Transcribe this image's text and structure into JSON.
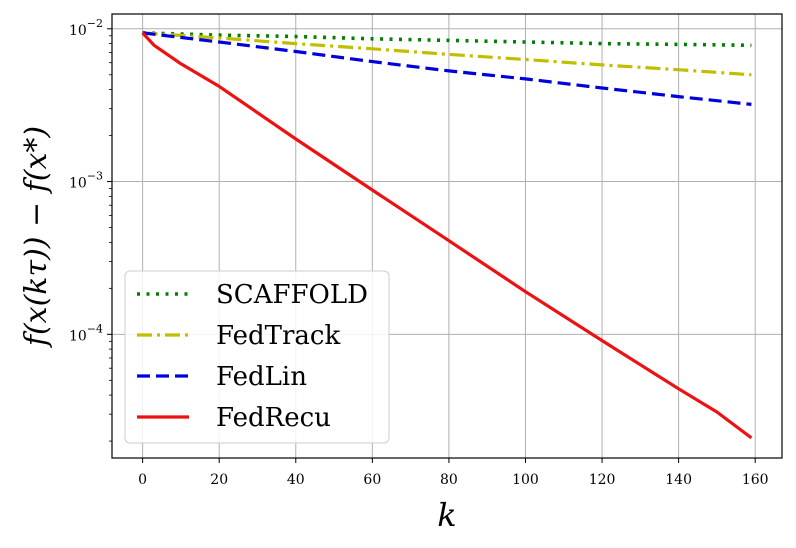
{
  "chart_data": {
    "type": "line",
    "title": "",
    "xlabel": "k",
    "ylabel": "f(x(kτ)) − f(x*)",
    "xscale": "linear",
    "yscale": "log",
    "xlim": [
      -8,
      167
    ],
    "ylim": [
      1.55e-05,
      0.0125
    ],
    "xticks": [
      0,
      20,
      40,
      60,
      80,
      100,
      120,
      140,
      160
    ],
    "yticks": [
      {
        "value": 0.0001,
        "base": "10",
        "exp": "−4"
      },
      {
        "value": 0.001,
        "base": "10",
        "exp": "−3"
      },
      {
        "value": 0.01,
        "base": "10",
        "exp": "−2"
      }
    ],
    "grid": true,
    "legend": {
      "position": "lower-left"
    },
    "series": [
      {
        "name": "SCAFFOLD",
        "color": "#008000",
        "style": "dotted",
        "x": [
          0,
          20,
          40,
          60,
          80,
          100,
          120,
          140,
          159
        ],
        "y": [
          0.0094,
          0.0091,
          0.0089,
          0.0086,
          0.0084,
          0.0082,
          0.008,
          0.0079,
          0.0078
        ]
      },
      {
        "name": "FedTrack",
        "color": "#bfbf00",
        "style": "dashdot",
        "x": [
          0,
          20,
          40,
          60,
          80,
          100,
          120,
          140,
          159
        ],
        "y": [
          0.0094,
          0.0087,
          0.008,
          0.0074,
          0.0068,
          0.0063,
          0.0058,
          0.0054,
          0.005
        ]
      },
      {
        "name": "FedLin",
        "color": "#0000dd",
        "style": "dashed",
        "x": [
          0,
          20,
          40,
          60,
          80,
          100,
          120,
          140,
          159
        ],
        "y": [
          0.0094,
          0.0082,
          0.0071,
          0.0061,
          0.0053,
          0.0047,
          0.0041,
          0.0036,
          0.0032
        ]
      },
      {
        "name": "FedRecu",
        "color": "#ee1111",
        "style": "solid",
        "x": [
          0,
          3,
          10,
          20,
          40,
          60,
          80,
          100,
          120,
          140,
          150,
          159
        ],
        "y": [
          0.0094,
          0.0078,
          0.0059,
          0.0042,
          0.0019,
          0.00088,
          0.00041,
          0.00019,
          9.1e-05,
          4.4e-05,
          3.1e-05,
          2.1e-05
        ]
      }
    ]
  }
}
